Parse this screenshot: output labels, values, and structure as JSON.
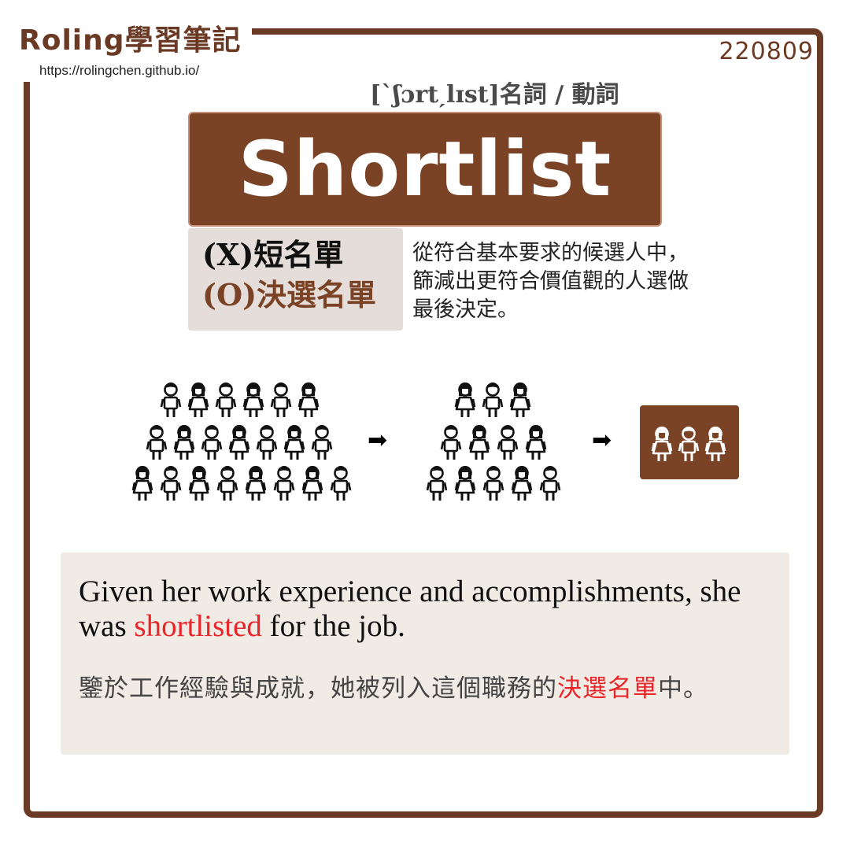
{
  "header": {
    "brand": "Roling學習筆記",
    "url": "https://rolingchen.github.io/",
    "date": "220809"
  },
  "entry": {
    "pronunciation": "[ˋʃɔrtˏlɪst]名詞 / 動詞",
    "word": "Shortlist",
    "wrong_meaning": "(X)短名單",
    "right_meaning": "(O)決選名單",
    "definition": "從符合基本要求的候選人中，篩減出更符合價值觀的人選做最後決定。"
  },
  "illustration": {
    "arrow_1": "➡",
    "arrow_2": "➡",
    "group_counts": [
      20,
      12,
      3
    ],
    "person_icon": "person-icon",
    "colors": {
      "people": "#111111",
      "selected_people": "#ffffff",
      "selected_bg": "#7a4326"
    }
  },
  "example": {
    "en_before": "Given her work experience and accomplishments, she was ",
    "en_highlight": "shortlisted",
    "en_after": " for the job.",
    "zh_before": "鑒於工作經驗與成就，她被列入這個職務的",
    "zh_highlight": "決選名單",
    "zh_after": "中。"
  },
  "colors": {
    "brand_brown": "#7a4326",
    "frame_brown": "#6b3a24",
    "highlight_red": "#e8262a",
    "meaning_bg": "#e5ddd9",
    "example_bg": "#f1ebe5"
  }
}
